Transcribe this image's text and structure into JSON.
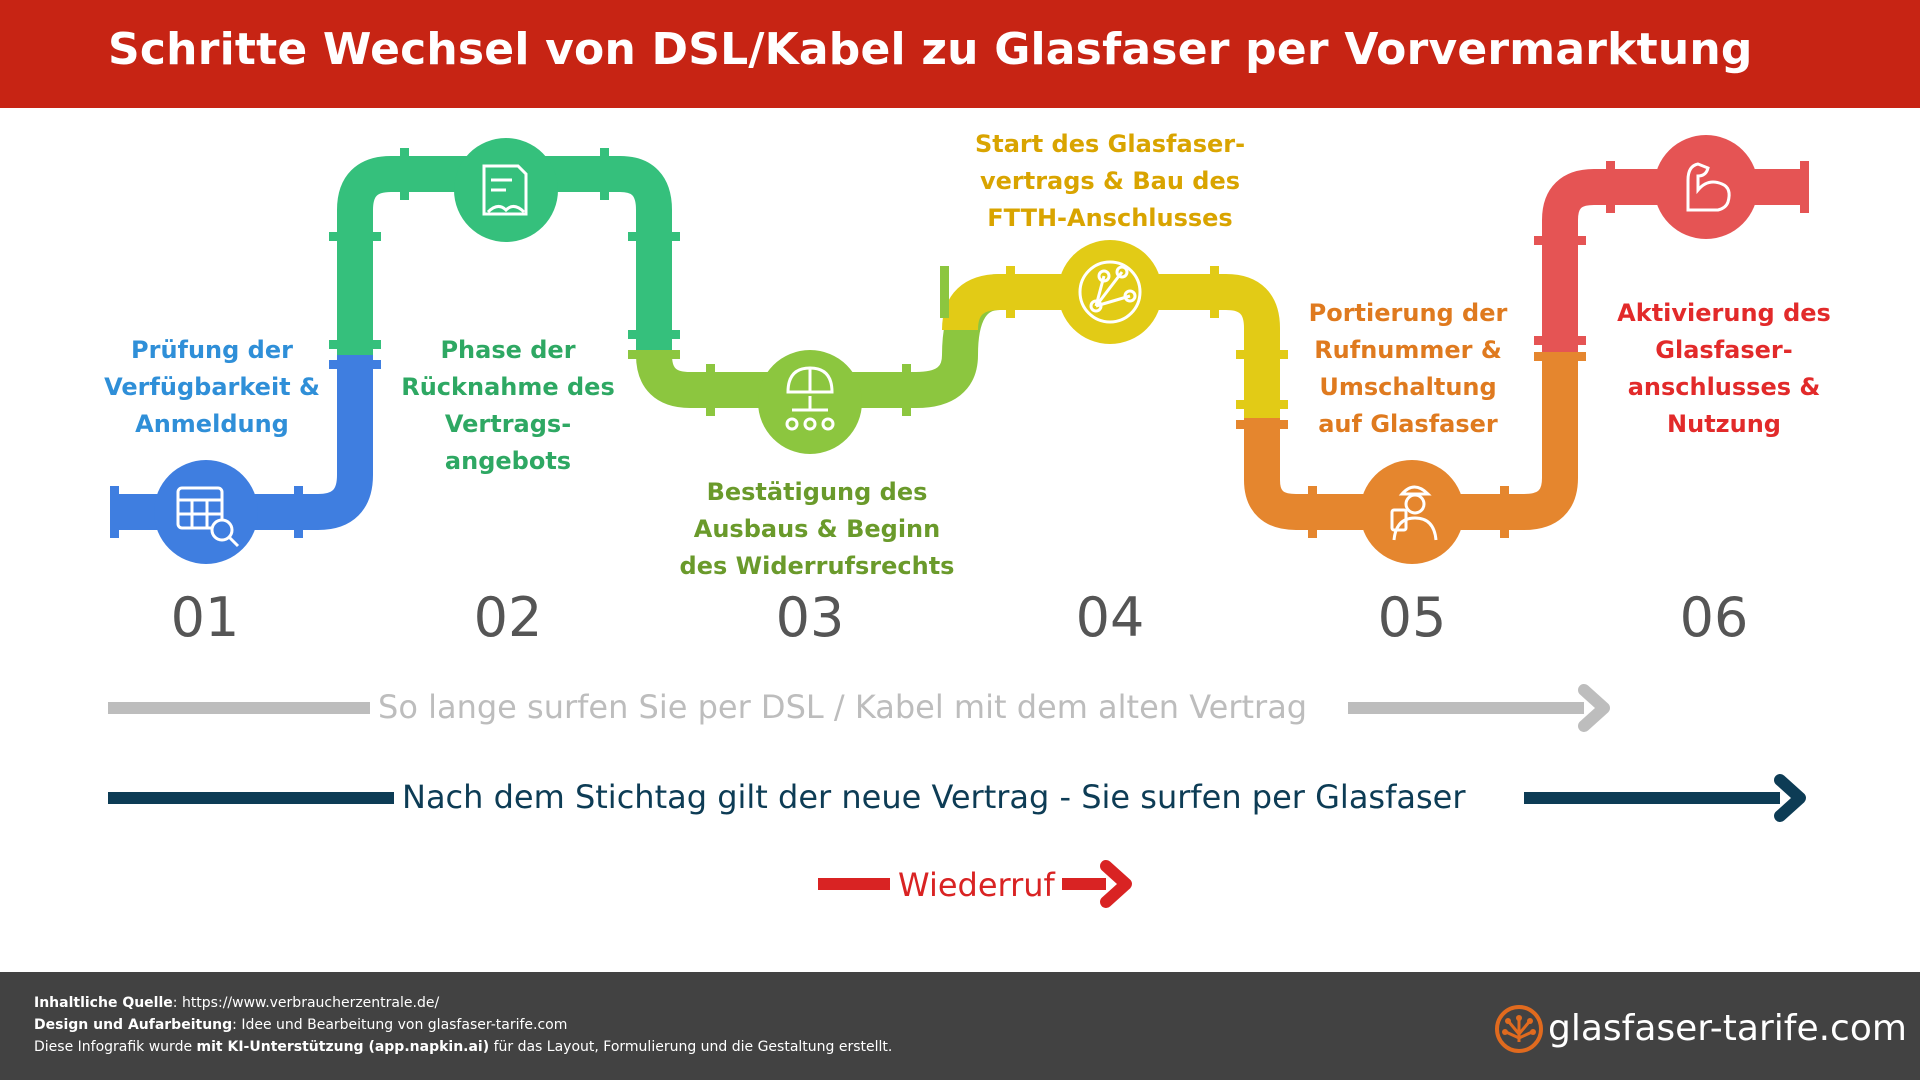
{
  "header": {
    "title": "Schritte Wechsel von DSL/Kabel zu Glasfaser per Vorvermarktung"
  },
  "steps": [
    {
      "number": "01",
      "lines": [
        "Prüfung der",
        "Verfügbarkeit &",
        "Anmeldung"
      ],
      "color": "#2f8fd8",
      "pipe_color": "#3f7ee0",
      "icon": "calendar-search-icon"
    },
    {
      "number": "02",
      "lines": [
        "Phase der",
        "Rücknahme des",
        "Vertrags-",
        "angebots"
      ],
      "color": "#2ea863",
      "pipe_color": "#35c07c",
      "icon": "contract-handshake-icon"
    },
    {
      "number": "03",
      "lines": [
        "Bestätigung des",
        "Ausbaus & Beginn",
        "des Widerrufsrechts"
      ],
      "color": "#6a9a2b",
      "pipe_color": "#8cc63f",
      "icon": "construction-helmet-network-icon"
    },
    {
      "number": "04",
      "lines": [
        "Start des Glasfaser-",
        "vertrags & Bau des",
        "FTTH-Anschlusses"
      ],
      "color": "#d9a400",
      "pipe_color": "#e2cb16",
      "icon": "fiber-network-icon"
    },
    {
      "number": "05",
      "lines": [
        "Portierung der",
        "Rufnummer &",
        "Umschaltung",
        "auf Glasfaser"
      ],
      "color": "#df7a1f",
      "pipe_color": "#e5862e",
      "icon": "technician-icon"
    },
    {
      "number": "06",
      "lines": [
        "Aktivierung des",
        "Glasfaser-",
        "anschlusses &",
        "Nutzung"
      ],
      "color": "#e22a2a",
      "pipe_color": "#e55454",
      "icon": "strong-arm-icon"
    }
  ],
  "arrows": {
    "old_contract": {
      "text": "So lange surfen Sie per DSL / Kabel mit dem alten Vertrag",
      "color": "#bdbdbd"
    },
    "new_contract": {
      "text": "Nach dem Stichtag gilt der neue Vertrag - Sie surfen per Glasfaser",
      "color": "#0d3c55"
    },
    "withdrawal": {
      "text": "Wiederruf",
      "color": "#d92323"
    }
  },
  "footer": {
    "source_label": "Inhaltliche Quelle",
    "source_value": ": https://www.verbraucherzentrale.de/",
    "design_label": "Design und Aufarbeitung",
    "design_value": ": Idee und Bearbeitung von glasfaser-tarife.com",
    "ai_prefix": "Diese Infografik wurde ",
    "ai_bold": "mit KI-Unterstützung (app.napkin.ai)",
    "ai_suffix": " für das Layout, Formulierung und die Gestaltung erstellt.",
    "brand": "glasfaser-tarife.com",
    "brand_icon": "fiber-burst-icon",
    "brand_icon_color": "#e06a1e"
  }
}
